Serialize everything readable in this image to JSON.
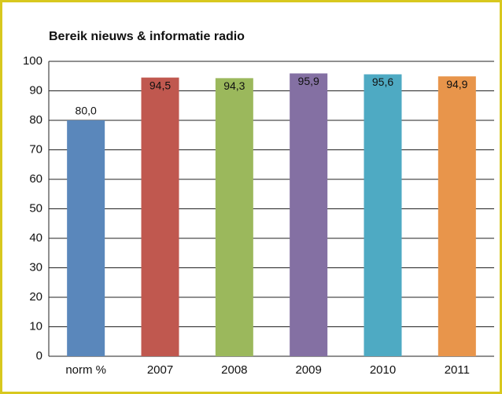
{
  "chart_data": {
    "type": "bar",
    "title": "Bereik nieuws & informatie radio",
    "categories": [
      "norm %",
      "2007",
      "2008",
      "2009",
      "2010",
      "2011"
    ],
    "values": [
      80.0,
      94.5,
      94.3,
      95.9,
      95.6,
      94.9
    ],
    "value_labels": [
      "80,0",
      "94,5",
      "94,3",
      "95,9",
      "95,6",
      "94,9"
    ],
    "colors": [
      "#5a87bb",
      "#c0584f",
      "#9bb85c",
      "#8470a3",
      "#4eaac3",
      "#e8954b"
    ],
    "ylim": [
      0,
      100
    ],
    "yticks": [
      0,
      10,
      20,
      30,
      40,
      50,
      60,
      70,
      80,
      90,
      100
    ],
    "grid": true
  }
}
